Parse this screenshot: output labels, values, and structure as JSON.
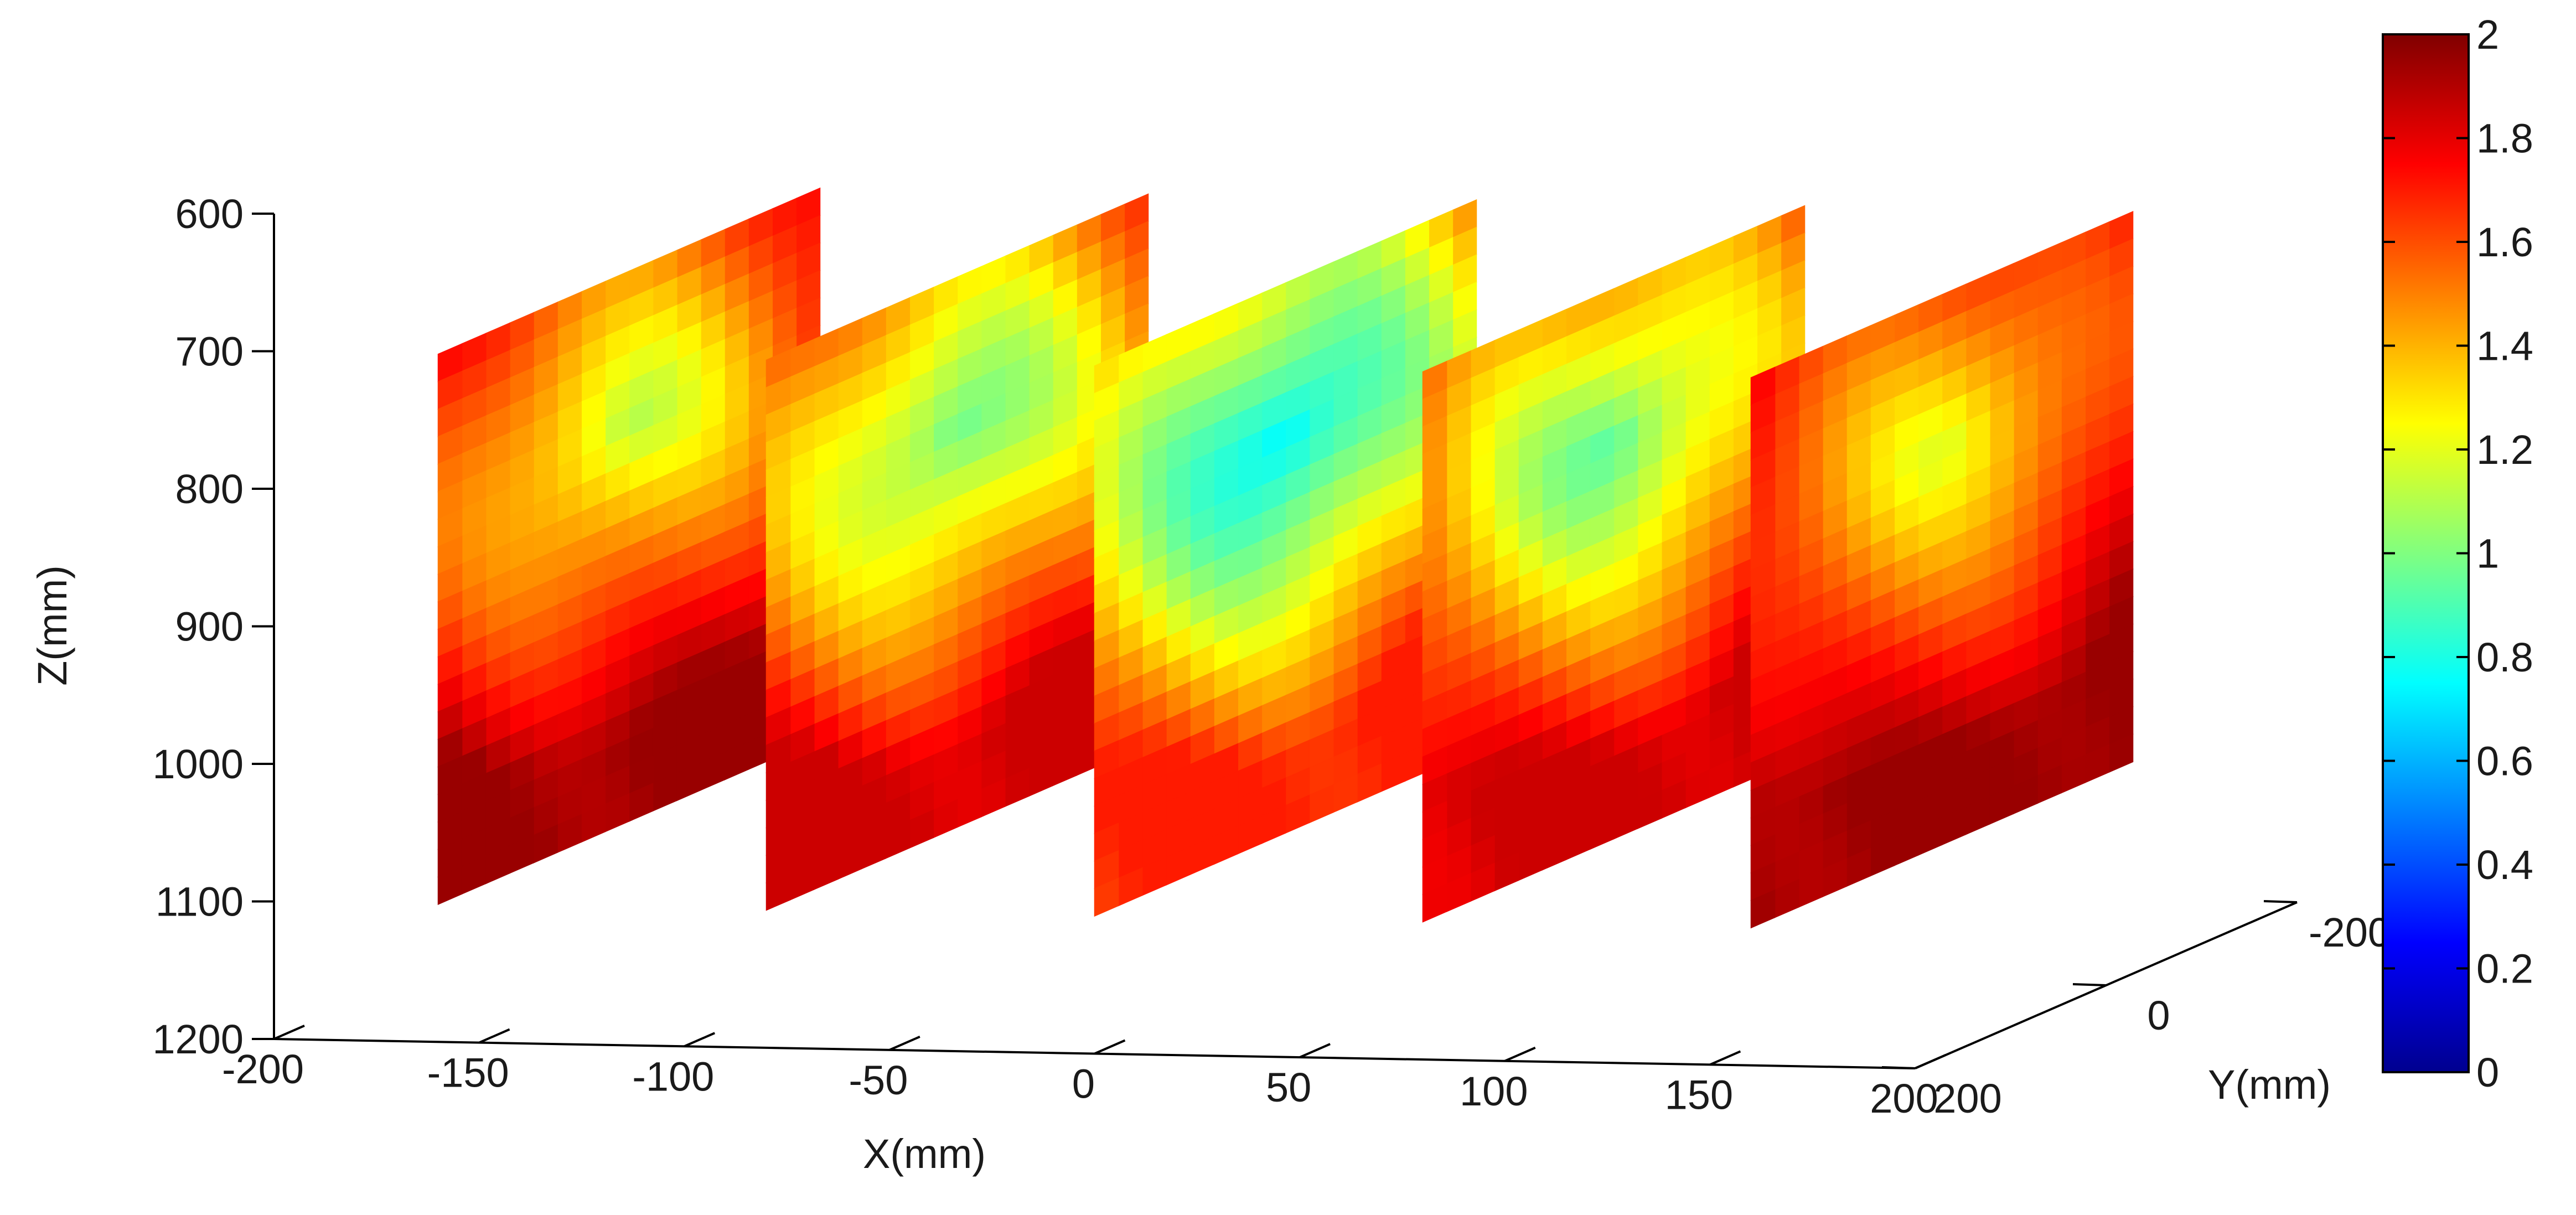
{
  "chart_data": {
    "type": "heatmap",
    "title": "",
    "xlabel": "X(mm)",
    "ylabel": "Y(mm)",
    "zlabel": "Z(mm)",
    "x_ticks": [
      -200,
      -150,
      -100,
      -50,
      0,
      50,
      100,
      150,
      200
    ],
    "y_ticks": [
      -200,
      0,
      200
    ],
    "z_ticks": [
      600,
      700,
      800,
      900,
      1000,
      1100,
      1200
    ],
    "xlim": [
      -200,
      200
    ],
    "ylim": [
      -200,
      200
    ],
    "zlim": [
      600,
      1200
    ],
    "z_reversed": true,
    "colormap": "jet",
    "colorbar": {
      "min": 0,
      "max": 2,
      "ticks": [
        0,
        0.2,
        0.4,
        0.6,
        0.8,
        1,
        1.2,
        1.4,
        1.6,
        1.8,
        2
      ],
      "stops": [
        "#00008f",
        "#0000ff",
        "#0080ff",
        "#00ffff",
        "#80ff80",
        "#ffff00",
        "#ff8000",
        "#ff0000",
        "#800000"
      ]
    },
    "grid": false,
    "slices": [
      {
        "x": -160,
        "y_range": [
          -200,
          200
        ],
        "z_range": [
          700,
          1100
        ],
        "min_value": 1.1,
        "max_value": 1.95
      },
      {
        "x": -80,
        "y_range": [
          -200,
          200
        ],
        "z_range": [
          700,
          1100
        ],
        "min_value": 0.9,
        "max_value": 1.85
      },
      {
        "x": 0,
        "y_range": [
          -200,
          200
        ],
        "z_range": [
          700,
          1100
        ],
        "min_value": 0.65,
        "max_value": 1.7
      },
      {
        "x": 80,
        "y_range": [
          -200,
          200
        ],
        "z_range": [
          700,
          1100
        ],
        "min_value": 0.9,
        "max_value": 1.85
      },
      {
        "x": 160,
        "y_range": [
          -200,
          200
        ],
        "z_range": [
          700,
          1100
        ],
        "min_value": 1.2,
        "max_value": 1.95
      }
    ]
  }
}
